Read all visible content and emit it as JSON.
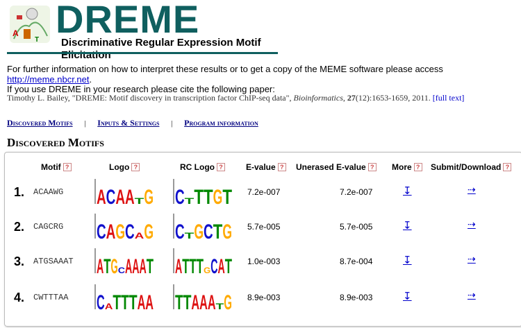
{
  "header": {
    "title": "DREME",
    "subtitle": "Discriminative Regular Expression Motif Elicitation"
  },
  "info": {
    "text": "For further information on how to interpret these results or to get a copy of the MEME software please access ",
    "link": "http://meme.nbcr.net",
    "tail": "."
  },
  "citation": {
    "intro": "If you use DREME in your research please cite the following paper:",
    "authors": "Timothy L. Bailey, \"DREME: Motif discovery in transcription factor ChIP-seq data\", ",
    "journal": "Bioinformatics",
    "comma": ", ",
    "volume": "27",
    "pages": "(12):1653-1659, 2011. ",
    "fulltext": "[full text]"
  },
  "nav": {
    "discovered": "Discovered Motifs",
    "inputs": "Inputs & Settings",
    "program": "Program information",
    "sep": "|"
  },
  "section": {
    "title": "Discovered Motifs"
  },
  "table": {
    "headers": {
      "motif": "Motif",
      "logo": "Logo",
      "rclogo": "RC Logo",
      "evalue": "E-value",
      "unerased": "Unerased E-value",
      "more": "More",
      "submit": "Submit/Download",
      "help": "?"
    },
    "rows": [
      {
        "num": "1.",
        "motif": "ACAAWG",
        "logo": "ACAAtG",
        "rclogo": "CtTTGT",
        "evalue": "7.2e-007",
        "unerased": "7.2e-007",
        "more": "↧",
        "submit": "⇢"
      },
      {
        "num": "2.",
        "motif": "CAGCRG",
        "logo": "CAGCaG",
        "rclogo": "CtGCTG",
        "evalue": "5.7e-005",
        "unerased": "5.7e-005",
        "more": "↧",
        "submit": "⇢"
      },
      {
        "num": "3.",
        "motif": "ATGSAAAT",
        "logo": "ATGcAAAT",
        "rclogo": "ATTTgCAT",
        "evalue": "1.0e-003",
        "unerased": "8.7e-004",
        "more": "↧",
        "submit": "⇢"
      },
      {
        "num": "4.",
        "motif": "CWTTTAA",
        "logo": "CaTTTAA",
        "rclogo": "TTAAAtG",
        "evalue": "8.9e-003",
        "unerased": "8.9e-003",
        "more": "↧",
        "submit": "⇢"
      }
    ]
  },
  "colors": {
    "title": "#0f5f5f",
    "A": "#d11",
    "C": "#11c",
    "G": "#fa0",
    "T": "#080",
    "link": "#0000cc"
  }
}
